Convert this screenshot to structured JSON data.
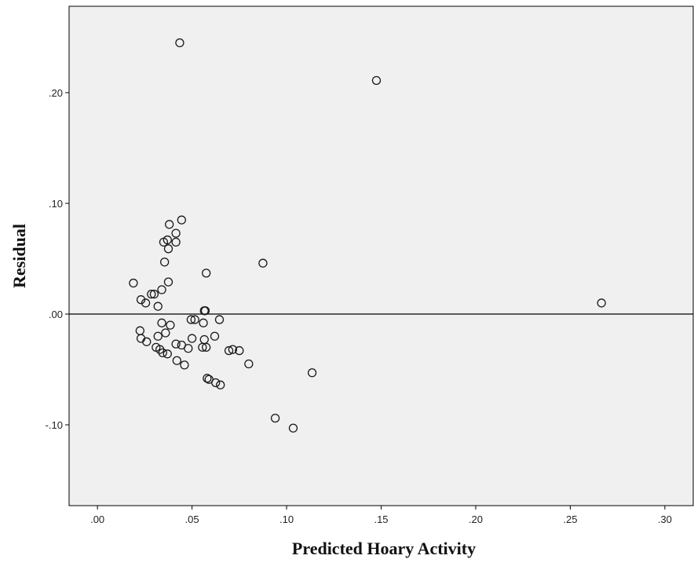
{
  "chart_data": {
    "type": "scatter",
    "title": "",
    "xlabel": "Predicted Hoary Activity",
    "ylabel": "Residual",
    "xlim": [
      -0.015,
      0.315
    ],
    "ylim": [
      -0.173,
      0.278
    ],
    "xticks": [
      0,
      0.05,
      0.1,
      0.15,
      0.2,
      0.25,
      0.3
    ],
    "xtick_labels": [
      ".00",
      ".05",
      ".10",
      ".15",
      ".20",
      ".25",
      ".30"
    ],
    "yticks": [
      -0.1,
      0,
      0.1,
      0.2
    ],
    "ytick_labels": [
      "-.10",
      ".00",
      ".10",
      ".20"
    ],
    "reference_line_y": 0,
    "grid": false,
    "legend": "none",
    "colors": {
      "plot_background": "#f0f0f0",
      "marker_stroke": "#1a1a1a",
      "axis": "#000000"
    },
    "points": [
      [
        0.0435,
        0.245
      ],
      [
        0.1475,
        0.211
      ],
      [
        0.2665,
        0.01
      ],
      [
        0.0445,
        0.085
      ],
      [
        0.038,
        0.081
      ],
      [
        0.0415,
        0.073
      ],
      [
        0.037,
        0.067
      ],
      [
        0.035,
        0.065
      ],
      [
        0.0415,
        0.065
      ],
      [
        0.0375,
        0.059
      ],
      [
        0.0355,
        0.047
      ],
      [
        0.0875,
        0.046
      ],
      [
        0.0575,
        0.037
      ],
      [
        0.0375,
        0.029
      ],
      [
        0.019,
        0.028
      ],
      [
        0.034,
        0.022
      ],
      [
        0.0285,
        0.018
      ],
      [
        0.03,
        0.018
      ],
      [
        0.023,
        0.013
      ],
      [
        0.0255,
        0.01
      ],
      [
        0.032,
        0.007
      ],
      [
        0.0565,
        0.003
      ],
      [
        0.057,
        0.003
      ],
      [
        0.0495,
        -0.005
      ],
      [
        0.0515,
        -0.005
      ],
      [
        0.0645,
        -0.005
      ],
      [
        0.034,
        -0.008
      ],
      [
        0.056,
        -0.008
      ],
      [
        0.0385,
        -0.01
      ],
      [
        0.0225,
        -0.015
      ],
      [
        0.036,
        -0.017
      ],
      [
        0.032,
        -0.02
      ],
      [
        0.062,
        -0.02
      ],
      [
        0.05,
        -0.022
      ],
      [
        0.023,
        -0.022
      ],
      [
        0.0565,
        -0.023
      ],
      [
        0.026,
        -0.025
      ],
      [
        0.0415,
        -0.027
      ],
      [
        0.0445,
        -0.028
      ],
      [
        0.031,
        -0.03
      ],
      [
        0.0555,
        -0.03
      ],
      [
        0.0575,
        -0.03
      ],
      [
        0.048,
        -0.031
      ],
      [
        0.033,
        -0.032
      ],
      [
        0.0715,
        -0.032
      ],
      [
        0.0695,
        -0.033
      ],
      [
        0.075,
        -0.033
      ],
      [
        0.0345,
        -0.035
      ],
      [
        0.037,
        -0.036
      ],
      [
        0.042,
        -0.042
      ],
      [
        0.046,
        -0.046
      ],
      [
        0.08,
        -0.045
      ],
      [
        0.1135,
        -0.053
      ],
      [
        0.058,
        -0.058
      ],
      [
        0.059,
        -0.059
      ],
      [
        0.0625,
        -0.062
      ],
      [
        0.065,
        -0.064
      ],
      [
        0.094,
        -0.094
      ],
      [
        0.1035,
        -0.103
      ]
    ]
  }
}
